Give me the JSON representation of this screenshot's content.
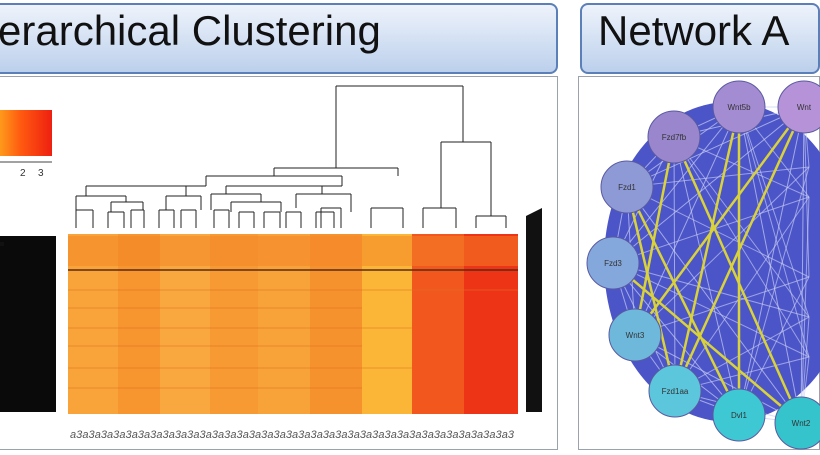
{
  "left_panel": {
    "title": "erarchical Clustering"
  },
  "right_panel": {
    "title": "Network A"
  },
  "color_key": {
    "ticks": [
      "2",
      "3"
    ]
  },
  "heatmap": {
    "column_labels": [
      "a3",
      "a3",
      "a3",
      "a3",
      "a3",
      "a3",
      "a3",
      "a3",
      "a3",
      "a3",
      "a3",
      "a3",
      "a3",
      "a3",
      "a3",
      "a3",
      "a3",
      "a3",
      "a3",
      "a3",
      "a3",
      "a3",
      "a3",
      "a3",
      "a3",
      "a3",
      "a3",
      "a3",
      "a3",
      "a3",
      "a3",
      "a3",
      "a3",
      "a3",
      "a3",
      "a3"
    ]
  },
  "network": {
    "nodes": [
      "Wnt5b",
      "Wnt",
      "Fzd7fb",
      "Fzd1",
      "Fzd3",
      "Wnt3",
      "Fzd1aa",
      "Dvl1",
      "Wnt2"
    ]
  }
}
